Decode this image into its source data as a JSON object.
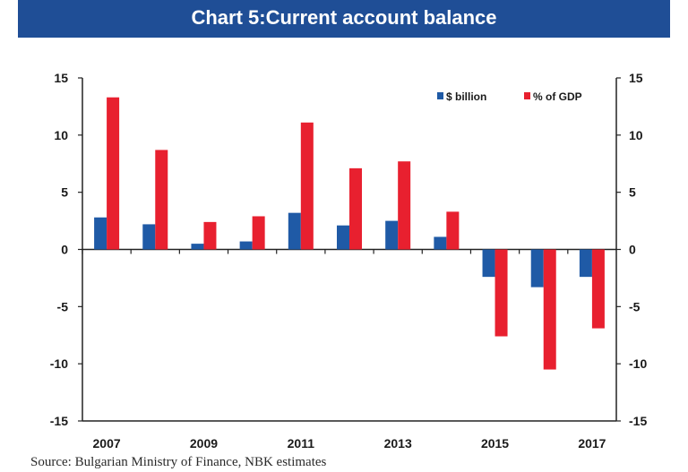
{
  "title": "Chart 5:Current account balance",
  "chart_data": {
    "type": "bar",
    "categories": [
      "2007",
      "2008",
      "2009",
      "2010",
      "2011",
      "2012",
      "2013",
      "2014",
      "2015",
      "2016",
      "2017"
    ],
    "x_tick_labels": [
      "2007",
      "2009",
      "2011",
      "2013",
      "2015",
      "2017"
    ],
    "series": [
      {
        "name": "$ billion",
        "color": "#1f5aa6",
        "values": [
          2.8,
          2.2,
          0.5,
          0.7,
          3.2,
          2.1,
          2.5,
          1.1,
          -2.4,
          -3.3,
          -2.4
        ]
      },
      {
        "name": "% of GDP",
        "color": "#e8202f",
        "values": [
          13.3,
          8.7,
          2.4,
          2.9,
          11.1,
          7.1,
          7.7,
          3.3,
          -7.6,
          -10.5,
          -6.9
        ]
      }
    ],
    "ylim": [
      -15,
      15
    ],
    "yticks": [
      "15",
      "10",
      "5",
      "0",
      "-5",
      "-10",
      "-15"
    ],
    "y2ticks": [
      "15",
      "10",
      "5",
      "0",
      "-5",
      "-10",
      "-15"
    ],
    "legend_position": "top-right",
    "grid": false
  },
  "source_text": "Source: Bulgarian Ministry of Finance, NBK estimates"
}
